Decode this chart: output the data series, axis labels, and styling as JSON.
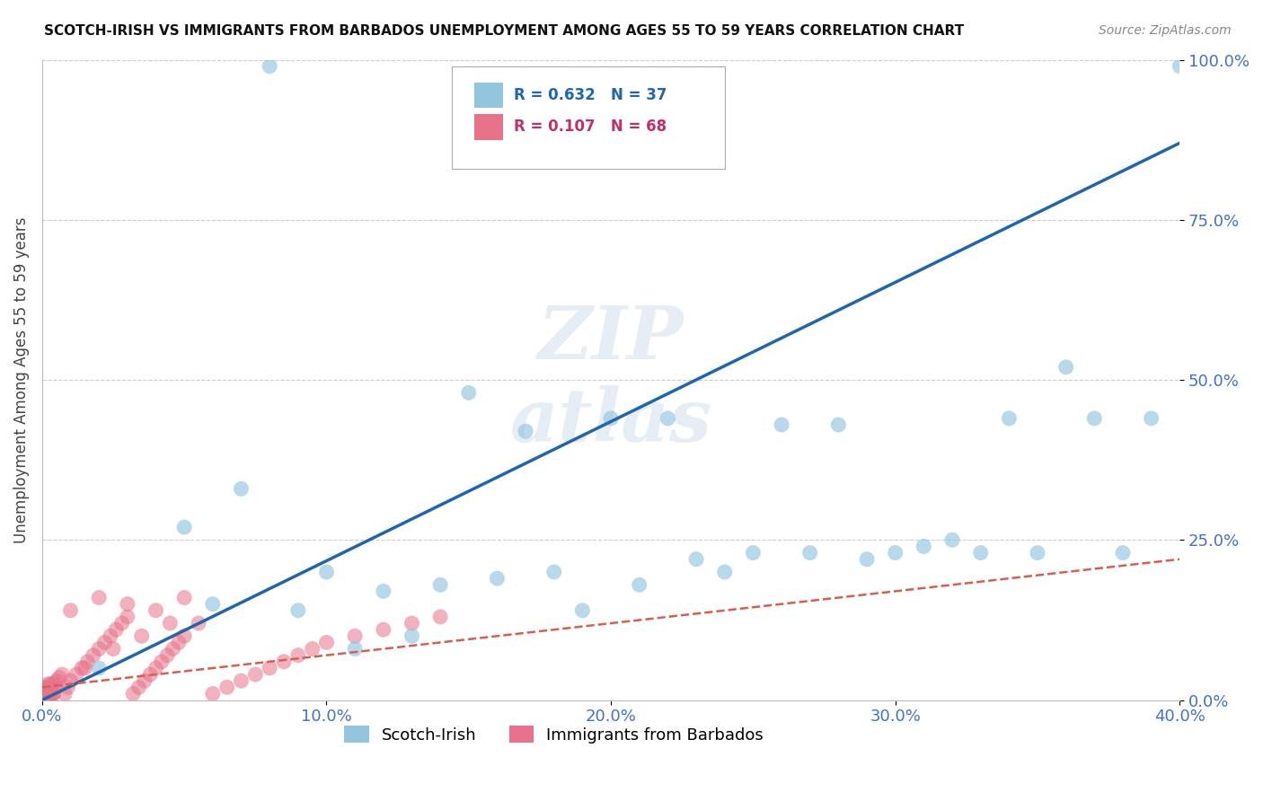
{
  "title": "SCOTCH-IRISH VS IMMIGRANTS FROM BARBADOS UNEMPLOYMENT AMONG AGES 55 TO 59 YEARS CORRELATION CHART",
  "source": "Source: ZipAtlas.com",
  "ylabel": "Unemployment Among Ages 55 to 59 years",
  "xlim": [
    0.0,
    0.4
  ],
  "ylim": [
    0.0,
    1.0
  ],
  "xticks": [
    0.0,
    0.1,
    0.2,
    0.3,
    0.4
  ],
  "xtick_labels": [
    "0.0%",
    "10.0%",
    "20.0%",
    "30.0%",
    "40.0%"
  ],
  "yticks": [
    0.0,
    0.25,
    0.5,
    0.75,
    1.0
  ],
  "ytick_labels": [
    "0.0%",
    "25.0%",
    "50.0%",
    "75.0%",
    "100.0%"
  ],
  "legend_label1": "Scotch-Irish",
  "legend_label2": "Immigrants from Barbados",
  "blue_color": "#92c5de",
  "blue_line_color": "#2166ac",
  "pink_color": "#f4a582",
  "pink_marker_color": "#e8728a",
  "pink_line_color": "#d6604d",
  "scatter_blue_x": [
    0.02,
    0.05,
    0.07,
    0.08,
    0.09,
    0.1,
    0.11,
    0.12,
    0.13,
    0.14,
    0.15,
    0.16,
    0.17,
    0.18,
    0.19,
    0.2,
    0.21,
    0.22,
    0.23,
    0.24,
    0.25,
    0.26,
    0.27,
    0.28,
    0.29,
    0.3,
    0.31,
    0.32,
    0.33,
    0.34,
    0.35,
    0.36,
    0.37,
    0.38,
    0.39,
    0.4,
    0.06
  ],
  "scatter_blue_y": [
    0.05,
    0.27,
    0.33,
    0.99,
    0.14,
    0.2,
    0.08,
    0.17,
    0.1,
    0.18,
    0.48,
    0.19,
    0.42,
    0.2,
    0.14,
    0.44,
    0.18,
    0.44,
    0.22,
    0.2,
    0.23,
    0.43,
    0.23,
    0.43,
    0.22,
    0.23,
    0.24,
    0.25,
    0.23,
    0.44,
    0.23,
    0.52,
    0.44,
    0.23,
    0.44,
    0.99,
    0.15
  ],
  "scatter_pink_x": [
    0.001,
    0.002,
    0.003,
    0.004,
    0.005,
    0.006,
    0.007,
    0.008,
    0.009,
    0.01,
    0.012,
    0.014,
    0.016,
    0.018,
    0.02,
    0.022,
    0.024,
    0.026,
    0.028,
    0.03,
    0.032,
    0.034,
    0.036,
    0.038,
    0.04,
    0.042,
    0.044,
    0.046,
    0.048,
    0.05,
    0.055,
    0.06,
    0.065,
    0.07,
    0.075,
    0.08,
    0.085,
    0.09,
    0.095,
    0.1,
    0.11,
    0.12,
    0.13,
    0.14,
    0.01,
    0.02,
    0.03,
    0.04,
    0.05,
    0.005,
    0.015,
    0.025,
    0.035,
    0.045,
    0.001,
    0.002,
    0.003,
    0.001,
    0.002,
    0.003,
    0.004,
    0.001,
    0.002,
    0.003,
    0.001,
    0.002,
    0.003,
    0.004
  ],
  "scatter_pink_y": [
    0.01,
    0.015,
    0.02,
    0.025,
    0.03,
    0.035,
    0.04,
    0.01,
    0.02,
    0.03,
    0.04,
    0.05,
    0.06,
    0.07,
    0.08,
    0.09,
    0.1,
    0.11,
    0.12,
    0.13,
    0.01,
    0.02,
    0.03,
    0.04,
    0.05,
    0.06,
    0.07,
    0.08,
    0.09,
    0.1,
    0.12,
    0.01,
    0.02,
    0.03,
    0.04,
    0.05,
    0.06,
    0.07,
    0.08,
    0.09,
    0.1,
    0.11,
    0.12,
    0.13,
    0.14,
    0.16,
    0.15,
    0.14,
    0.16,
    0.02,
    0.05,
    0.08,
    0.1,
    0.12,
    0.005,
    0.01,
    0.015,
    0.02,
    0.025,
    0.005,
    0.01,
    0.015,
    0.005,
    0.01,
    0.015,
    0.02,
    0.025,
    0.01
  ],
  "blue_trend_x": [
    0.0,
    0.4
  ],
  "blue_trend_y": [
    0.0,
    0.87
  ],
  "pink_trend_x": [
    0.0,
    0.4
  ],
  "pink_trend_y": [
    0.02,
    0.22
  ]
}
